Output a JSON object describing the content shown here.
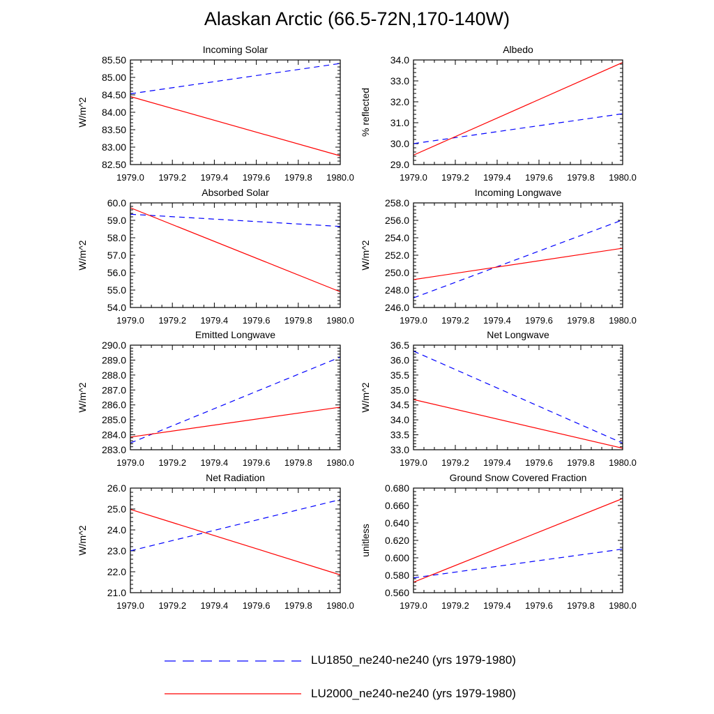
{
  "title": "Alaskan Arctic (66.5-72N,170-140W)",
  "colors": {
    "LU1850": "#0000ff",
    "LU2000": "#ff0000",
    "axis": "#000000"
  },
  "legend": [
    {
      "label": "LU1850_ne240-ne240 (yrs 1979-1980)",
      "color": "#0000ff",
      "style": "dashed"
    },
    {
      "label": "LU2000_ne240-ne240 (yrs 1979-1980)",
      "color": "#ff0000",
      "style": "solid"
    }
  ],
  "chart_data": [
    {
      "type": "line",
      "title": "Incoming Solar",
      "ylabel": "W/m^2",
      "xlim": [
        1979.0,
        1980.0
      ],
      "ylim": [
        82.5,
        85.5
      ],
      "xticks": [
        "1979.0",
        "1979.2",
        "1979.4",
        "1979.6",
        "1979.8",
        "1980.0"
      ],
      "yticks": [
        "82.50",
        "83.00",
        "83.50",
        "84.00",
        "84.50",
        "85.00",
        "85.50"
      ],
      "x": [
        1979.0,
        1980.0
      ],
      "series": [
        {
          "name": "LU1850_ne240-ne240 (yrs 1979-1980)",
          "values": [
            84.53,
            85.4
          ]
        },
        {
          "name": "LU2000_ne240-ne240 (yrs 1979-1980)",
          "values": [
            84.45,
            82.75
          ]
        }
      ]
    },
    {
      "type": "line",
      "title": "Albedo",
      "ylabel": "% reflected",
      "xlim": [
        1979.0,
        1980.0
      ],
      "ylim": [
        29.0,
        34.0
      ],
      "xticks": [
        "1979.0",
        "1979.2",
        "1979.4",
        "1979.6",
        "1979.8",
        "1980.0"
      ],
      "yticks": [
        "29.0",
        "30.0",
        "31.0",
        "32.0",
        "33.0",
        "34.0"
      ],
      "x": [
        1979.0,
        1980.0
      ],
      "series": [
        {
          "name": "LU1850_ne240-ne240 (yrs 1979-1980)",
          "values": [
            30.0,
            31.43
          ]
        },
        {
          "name": "LU2000_ne240-ne240 (yrs 1979-1980)",
          "values": [
            29.45,
            33.88
          ]
        }
      ]
    },
    {
      "type": "line",
      "title": "Absorbed Solar",
      "ylabel": "W/m^2",
      "xlim": [
        1979.0,
        1980.0
      ],
      "ylim": [
        54.0,
        60.0
      ],
      "xticks": [
        "1979.0",
        "1979.2",
        "1979.4",
        "1979.6",
        "1979.8",
        "1980.0"
      ],
      "yticks": [
        "54.0",
        "55.0",
        "56.0",
        "57.0",
        "58.0",
        "59.0",
        "60.0"
      ],
      "x": [
        1979.0,
        1980.0
      ],
      "series": [
        {
          "name": "LU1850_ne240-ne240 (yrs 1979-1980)",
          "values": [
            59.35,
            58.65
          ]
        },
        {
          "name": "LU2000_ne240-ne240 (yrs 1979-1980)",
          "values": [
            59.72,
            54.9
          ]
        }
      ]
    },
    {
      "type": "line",
      "title": "Incoming Longwave",
      "ylabel": "W/m^2",
      "xlim": [
        1979.0,
        1980.0
      ],
      "ylim": [
        246.0,
        258.0
      ],
      "xticks": [
        "1979.0",
        "1979.2",
        "1979.4",
        "1979.6",
        "1979.8",
        "1980.0"
      ],
      "yticks": [
        "246.0",
        "248.0",
        "250.0",
        "252.0",
        "254.0",
        "256.0",
        "258.0"
      ],
      "x": [
        1979.0,
        1980.0
      ],
      "series": [
        {
          "name": "LU1850_ne240-ne240 (yrs 1979-1980)",
          "values": [
            247.1,
            256.05
          ]
        },
        {
          "name": "LU2000_ne240-ne240 (yrs 1979-1980)",
          "values": [
            249.2,
            252.8
          ]
        }
      ]
    },
    {
      "type": "line",
      "title": "Emitted Longwave",
      "ylabel": "W/m^2",
      "xlim": [
        1979.0,
        1980.0
      ],
      "ylim": [
        283.0,
        290.0
      ],
      "xticks": [
        "1979.0",
        "1979.2",
        "1979.4",
        "1979.6",
        "1979.8",
        "1980.0"
      ],
      "yticks": [
        "283.0",
        "284.0",
        "285.0",
        "286.0",
        "287.0",
        "288.0",
        "289.0",
        "290.0"
      ],
      "x": [
        1979.0,
        1980.0
      ],
      "series": [
        {
          "name": "LU1850_ne240-ne240 (yrs 1979-1980)",
          "values": [
            283.45,
            289.2
          ]
        },
        {
          "name": "LU2000_ne240-ne240 (yrs 1979-1980)",
          "values": [
            283.85,
            285.85
          ]
        }
      ]
    },
    {
      "type": "line",
      "title": "Net Longwave",
      "ylabel": "W/m^2",
      "xlim": [
        1979.0,
        1980.0
      ],
      "ylim": [
        33.0,
        36.5
      ],
      "xticks": [
        "1979.0",
        "1979.2",
        "1979.4",
        "1979.6",
        "1979.8",
        "1980.0"
      ],
      "yticks": [
        "33.0",
        "33.5",
        "34.0",
        "34.5",
        "35.0",
        "35.5",
        "36.0",
        "36.5"
      ],
      "x": [
        1979.0,
        1980.0
      ],
      "series": [
        {
          "name": "LU1850_ne240-ne240 (yrs 1979-1980)",
          "values": [
            36.3,
            33.22
          ]
        },
        {
          "name": "LU2000_ne240-ne240 (yrs 1979-1980)",
          "values": [
            34.68,
            33.05
          ]
        }
      ]
    },
    {
      "type": "line",
      "title": "Net Radiation",
      "ylabel": "W/m^2",
      "xlim": [
        1979.0,
        1980.0
      ],
      "ylim": [
        21.0,
        26.0
      ],
      "xticks": [
        "1979.0",
        "1979.2",
        "1979.4",
        "1979.6",
        "1979.8",
        "1980.0"
      ],
      "yticks": [
        "21.0",
        "22.0",
        "23.0",
        "24.0",
        "25.0",
        "26.0"
      ],
      "x": [
        1979.0,
        1980.0
      ],
      "series": [
        {
          "name": "LU1850_ne240-ne240 (yrs 1979-1980)",
          "values": [
            23.0,
            25.45
          ]
        },
        {
          "name": "LU2000_ne240-ne240 (yrs 1979-1980)",
          "values": [
            24.98,
            21.85
          ]
        }
      ]
    },
    {
      "type": "line",
      "title": "Ground Snow Covered Fraction",
      "ylabel": "unitless",
      "xlim": [
        1979.0,
        1980.0
      ],
      "ylim": [
        0.56,
        0.68
      ],
      "xticks": [
        "1979.0",
        "1979.2",
        "1979.4",
        "1979.6",
        "1979.8",
        "1980.0"
      ],
      "yticks": [
        "0.560",
        "0.580",
        "0.600",
        "0.620",
        "0.640",
        "0.660",
        "0.680"
      ],
      "x": [
        1979.0,
        1980.0
      ],
      "series": [
        {
          "name": "LU1850_ne240-ne240 (yrs 1979-1980)",
          "values": [
            0.577,
            0.61
          ]
        },
        {
          "name": "LU2000_ne240-ne240 (yrs 1979-1980)",
          "values": [
            0.572,
            0.668
          ]
        }
      ]
    }
  ]
}
